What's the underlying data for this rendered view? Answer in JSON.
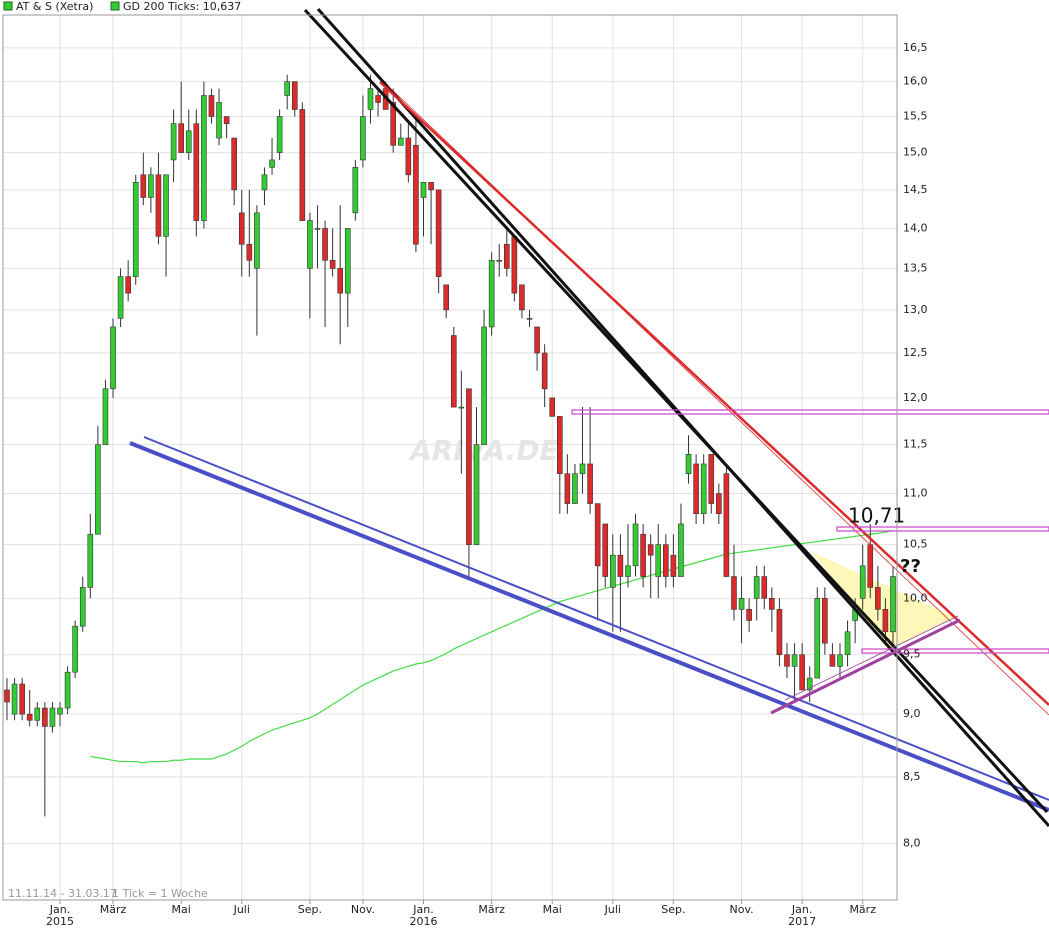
{
  "chart_data": {
    "type": "candlestick",
    "title": "AT & S (Xetra)",
    "range_label": "11.11.14 - 31.03.17",
    "tick_label": "1 Tick = 1 Woche",
    "watermark": "ARIVA.DE",
    "annotations": [
      "10,71",
      "??"
    ],
    "log_scale": true,
    "grid": true,
    "up_color": "#33cc33",
    "down_color": "#dd2a2a",
    "ylim": [
      7.6,
      17.0
    ],
    "yticks": [
      {
        "value": 8.0,
        "label": "8,0"
      },
      {
        "value": 8.5,
        "label": "8,5"
      },
      {
        "value": 9.0,
        "label": "9,0"
      },
      {
        "value": 9.5,
        "label": "9,5"
      },
      {
        "value": 10.0,
        "label": "10,0"
      },
      {
        "value": 10.5,
        "label": "10,5"
      },
      {
        "value": 11.0,
        "label": "11,0"
      },
      {
        "value": 11.5,
        "label": "11,5"
      },
      {
        "value": 12.0,
        "label": "12,0"
      },
      {
        "value": 12.5,
        "label": "12,5"
      },
      {
        "value": 13.0,
        "label": "13,0"
      },
      {
        "value": 13.5,
        "label": "13,5"
      },
      {
        "value": 14.0,
        "label": "14,0"
      },
      {
        "value": 14.5,
        "label": "14,5"
      },
      {
        "value": 15.0,
        "label": "15,0"
      },
      {
        "value": 15.5,
        "label": "15,5"
      },
      {
        "value": 16.0,
        "label": "16,0"
      },
      {
        "value": 16.5,
        "label": "16,5"
      }
    ],
    "categories": [
      null,
      null,
      null,
      null,
      null,
      null,
      null,
      [
        "Jan.",
        "2015"
      ],
      null,
      null,
      null,
      null,
      null,
      null,
      "März",
      null,
      null,
      null,
      null,
      null,
      null,
      null,
      null,
      "Mai",
      null,
      null,
      null,
      null,
      null,
      null,
      null,
      "Juli",
      null,
      null,
      null,
      null,
      null,
      null,
      null,
      null,
      "Sep.",
      null,
      null,
      null,
      null,
      null,
      null,
      "Nov.",
      null,
      null,
      null,
      null,
      null,
      null,
      null,
      [
        "Jan.",
        "2016"
      ],
      null,
      null,
      null,
      null,
      null,
      null,
      null,
      null,
      "März",
      null,
      null,
      null,
      null,
      null,
      null,
      null,
      "Mai",
      null,
      null,
      null,
      null,
      null,
      null,
      null,
      "Juli",
      null,
      null,
      null,
      null,
      null,
      null,
      null,
      "Sep.",
      null,
      null,
      null,
      null,
      null,
      null,
      null,
      null,
      "Nov.",
      null,
      null,
      null,
      null,
      null,
      null,
      null,
      [
        "Jan.",
        "2017"
      ],
      null,
      null,
      null,
      null,
      null,
      null,
      null,
      "März",
      null,
      null,
      null,
      null
    ],
    "candles": {
      "name": "AT & S (Xetra)",
      "color": "#33cc33",
      "open": [
        9.2,
        9.0,
        9.25,
        9.0,
        8.95,
        9.05,
        8.9,
        9.0,
        9.05,
        9.35,
        9.75,
        10.1,
        10.6,
        11.5,
        12.1,
        12.9,
        13.4,
        13.4,
        14.7,
        14.4,
        14.7,
        13.9,
        14.9,
        15.4,
        15.0,
        15.4,
        14.1,
        15.8,
        15.2,
        15.5,
        15.2,
        14.2,
        13.8,
        13.5,
        14.5,
        14.8,
        15.0,
        15.8,
        16.0,
        15.6,
        13.5,
        14.0,
        14.0,
        13.6,
        13.5,
        13.2,
        14.2,
        14.9,
        15.6,
        15.8,
        15.9,
        15.7,
        15.1,
        15.2,
        15.1,
        14.4,
        14.6,
        14.5,
        13.3,
        12.7,
        11.9,
        12.1,
        10.5,
        11.5,
        12.8,
        13.6,
        13.8,
        13.9,
        13.3,
        12.9,
        12.8,
        12.5,
        12.0,
        11.8,
        11.2,
        10.9,
        11.2,
        11.3,
        10.9,
        10.7,
        10.1,
        10.4,
        10.2,
        10.3,
        10.6,
        10.5,
        10.2,
        10.5,
        10.4,
        10.2,
        11.2,
        11.3,
        10.8,
        11.4,
        11.0,
        11.2,
        10.2,
        9.9,
        9.9,
        10.0,
        10.2,
        10.0,
        9.9,
        9.5,
        9.4,
        9.5,
        9.2,
        9.3,
        10.0,
        9.5,
        9.4,
        9.5,
        9.8,
        10.0,
        10.5,
        10.1,
        9.9,
        9.7
      ],
      "high": [
        9.3,
        9.3,
        9.3,
        9.2,
        9.1,
        9.1,
        9.1,
        9.1,
        9.4,
        9.8,
        10.2,
        10.8,
        11.7,
        12.2,
        12.9,
        13.5,
        13.6,
        14.7,
        15.0,
        14.8,
        15.0,
        14.7,
        15.6,
        16.0,
        15.6,
        15.6,
        16.0,
        15.9,
        15.9,
        15.5,
        15.2,
        14.5,
        14.5,
        14.3,
        14.8,
        15.2,
        15.6,
        16.1,
        16.0,
        15.7,
        14.2,
        14.3,
        14.1,
        14.0,
        14.3,
        14.0,
        14.9,
        15.8,
        16.1,
        15.9,
        16.0,
        15.9,
        15.4,
        15.4,
        15.5,
        14.6,
        14.6,
        14.5,
        13.3,
        12.8,
        12.3,
        12.1,
        11.9,
        13.0,
        13.7,
        13.8,
        14.0,
        13.9,
        13.3,
        13.0,
        12.8,
        12.6,
        12.0,
        11.8,
        11.4,
        11.3,
        11.9,
        11.9,
        10.9,
        10.7,
        10.6,
        10.6,
        10.7,
        10.8,
        10.7,
        10.6,
        10.7,
        10.6,
        10.6,
        10.9,
        11.6,
        11.4,
        11.4,
        11.4,
        11.1,
        11.3,
        10.5,
        10.2,
        10.0,
        10.3,
        10.3,
        10.1,
        10.0,
        9.6,
        9.6,
        9.6,
        9.4,
        10.1,
        10.1,
        9.6,
        9.6,
        9.8,
        10.0,
        10.5,
        10.7,
        10.3,
        10.0,
        10.3
      ],
      "low": [
        8.95,
        8.95,
        8.95,
        8.9,
        8.9,
        8.2,
        8.85,
        8.9,
        9.0,
        9.3,
        9.7,
        10.0,
        10.6,
        11.5,
        12.0,
        12.8,
        13.1,
        13.3,
        14.3,
        14.2,
        13.8,
        13.4,
        14.6,
        15.0,
        14.9,
        13.9,
        14.0,
        15.4,
        15.1,
        15.2,
        14.3,
        13.4,
        13.4,
        12.7,
        14.3,
        14.7,
        14.9,
        15.6,
        15.5,
        14.1,
        12.9,
        13.5,
        12.8,
        13.4,
        12.6,
        12.8,
        14.1,
        14.8,
        15.4,
        15.5,
        15.6,
        15.0,
        15.1,
        14.6,
        13.7,
        13.9,
        13.8,
        13.2,
        12.9,
        11.9,
        11.2,
        10.2,
        10.5,
        11.5,
        12.7,
        13.4,
        13.4,
        13.1,
        12.9,
        12.8,
        12.3,
        11.9,
        11.8,
        10.8,
        10.8,
        10.9,
        11.0,
        10.8,
        9.8,
        10.1,
        9.7,
        9.7,
        10.1,
        10.2,
        10.1,
        10.0,
        10.0,
        10.1,
        10.1,
        10.2,
        11.1,
        10.7,
        10.7,
        10.8,
        10.7,
        10.2,
        9.8,
        9.6,
        9.7,
        9.8,
        9.9,
        9.7,
        9.4,
        9.3,
        9.1,
        9.2,
        9.1,
        9.3,
        9.5,
        9.4,
        9.3,
        9.4,
        9.6,
        9.9,
        10.0,
        9.8,
        9.6,
        9.6
      ],
      "close": [
        9.1,
        9.25,
        9.0,
        8.95,
        9.05,
        8.9,
        9.05,
        9.05,
        9.35,
        9.75,
        10.1,
        10.6,
        11.5,
        12.1,
        12.8,
        13.4,
        13.2,
        14.6,
        14.4,
        14.7,
        13.9,
        14.7,
        15.4,
        15.0,
        15.3,
        14.1,
        15.8,
        15.5,
        15.7,
        15.4,
        14.5,
        13.8,
        13.6,
        14.2,
        14.7,
        14.9,
        15.5,
        16.0,
        15.6,
        14.1,
        14.1,
        14.0,
        13.6,
        13.5,
        13.2,
        14.0,
        14.8,
        15.5,
        15.9,
        15.7,
        15.6,
        15.1,
        15.2,
        14.7,
        13.8,
        14.6,
        14.5,
        13.4,
        13.0,
        11.9,
        11.9,
        10.5,
        11.5,
        12.8,
        13.6,
        13.6,
        13.5,
        13.2,
        13.0,
        12.9,
        12.5,
        12.1,
        11.8,
        11.2,
        10.9,
        11.2,
        11.3,
        10.9,
        10.3,
        10.2,
        10.4,
        10.2,
        10.3,
        10.7,
        10.2,
        10.4,
        10.5,
        10.2,
        10.2,
        10.7,
        11.4,
        10.8,
        11.3,
        10.9,
        10.8,
        10.2,
        9.9,
        10.0,
        9.8,
        10.2,
        10.0,
        9.9,
        9.5,
        9.4,
        9.5,
        9.2,
        9.3,
        10.0,
        9.6,
        9.4,
        9.5,
        9.7,
        9.9,
        10.3,
        10.1,
        9.9,
        9.7,
        10.2
      ]
    },
    "series": [
      {
        "name": "GD 200 Ticks: 10,637",
        "color": "#44dd44",
        "values": [
          null,
          null,
          null,
          null,
          null,
          null,
          null,
          null,
          null,
          null,
          null,
          8.66,
          8.65,
          8.64,
          8.63,
          8.62,
          8.62,
          8.62,
          8.61,
          8.62,
          8.62,
          8.62,
          8.63,
          8.63,
          8.64,
          8.64,
          8.64,
          8.64,
          8.66,
          8.68,
          8.71,
          8.74,
          8.78,
          8.81,
          8.84,
          8.87,
          8.89,
          8.91,
          8.93,
          8.95,
          8.97,
          9.0,
          9.04,
          9.08,
          9.12,
          9.16,
          9.2,
          9.24,
          9.27,
          9.3,
          9.33,
          9.36,
          9.38,
          9.4,
          9.42,
          9.43,
          9.45,
          9.48,
          9.51,
          9.55,
          9.58,
          9.61,
          9.64,
          9.67,
          9.7,
          9.73,
          9.76,
          9.79,
          9.82,
          9.85,
          9.88,
          9.91,
          9.94,
          9.97,
          9.99,
          10.01,
          10.03,
          10.05,
          10.07,
          10.09,
          10.11,
          10.13,
          10.15,
          10.17,
          10.19,
          10.21,
          10.23,
          10.25,
          10.27,
          10.29,
          10.31,
          10.33,
          10.35,
          10.37,
          10.39,
          10.41,
          10.42,
          10.43,
          10.44,
          10.45,
          10.46,
          10.47,
          10.48,
          10.49,
          10.5,
          10.51,
          10.52,
          10.53,
          10.54,
          10.55,
          10.56,
          10.57,
          10.58,
          10.59,
          10.6,
          10.61,
          10.62,
          10.637
        ]
      }
    ]
  }
}
